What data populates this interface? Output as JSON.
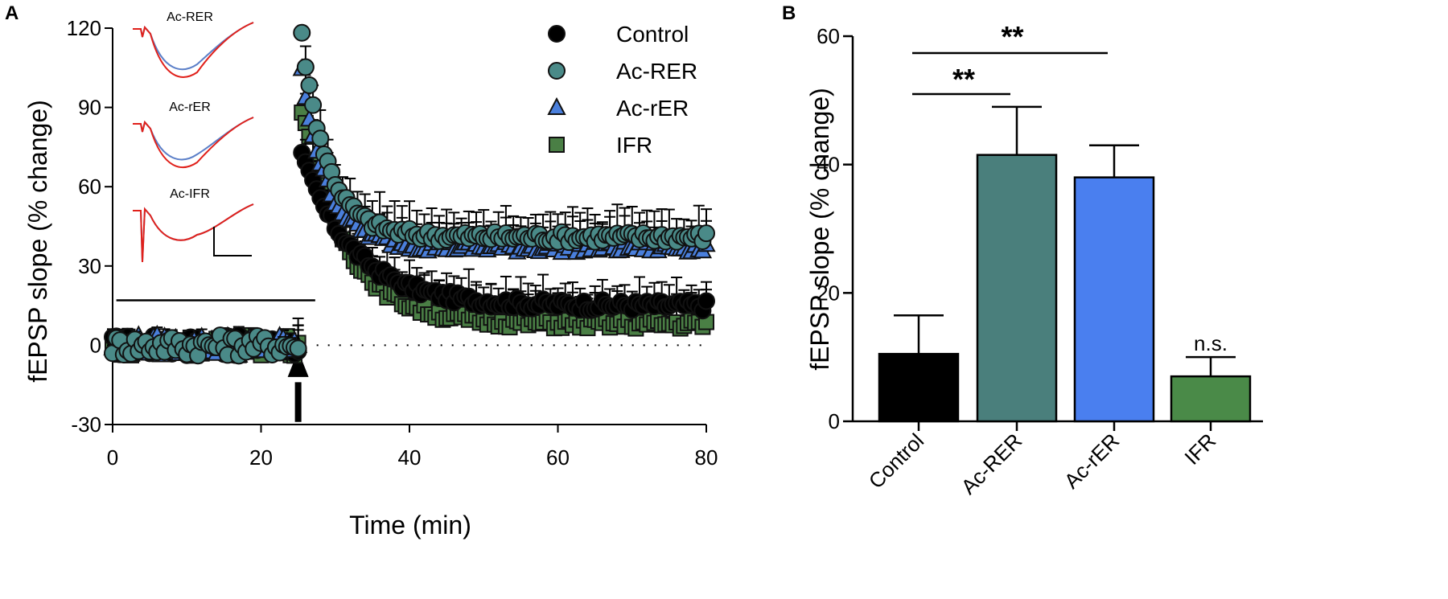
{
  "panels": {
    "a": "A",
    "b": "B"
  },
  "chart_data": [
    {
      "type": "scatter",
      "panel": "A",
      "xlabel": "Time (min)",
      "ylabel": "fEPSP slope (% change)",
      "xlim": [
        0,
        80
      ],
      "ylim": [
        -30,
        120
      ],
      "xticks": [
        0,
        20,
        40,
        60,
        80
      ],
      "yticks": [
        -30,
        0,
        30,
        60,
        90,
        120
      ],
      "baseline_bar_label": "",
      "stimulus_arrow_time": 25,
      "series": [
        {
          "name": "Control",
          "marker": "circle",
          "color": "#000000",
          "baseline": 0,
          "peak": 72,
          "plateau": 15,
          "tau": 7,
          "err": 8
        },
        {
          "name": "Ac-RER",
          "marker": "circle",
          "color": "#4a8a88",
          "baseline": 0,
          "peak": 117,
          "plateau": 41,
          "tau": 3.5,
          "err": 9
        },
        {
          "name": "Ac-rER",
          "marker": "triangle",
          "color": "#4a7fdc",
          "baseline": 0,
          "peak": 103,
          "plateau": 37,
          "tau": 3.5,
          "err": 8
        },
        {
          "name": "IFR",
          "marker": "square",
          "color": "#4a7f45",
          "baseline": 0,
          "peak": 90,
          "plateau": 8,
          "tau": 6,
          "err": 10
        }
      ],
      "insets": [
        {
          "label": "Ac-RER"
        },
        {
          "label": "Ac-rER"
        },
        {
          "label": "Ac-IFR"
        }
      ]
    },
    {
      "type": "bar",
      "panel": "B",
      "ylabel": "fEPSP slope (% change)",
      "ylim": [
        0,
        60
      ],
      "yticks": [
        0,
        20,
        40,
        60
      ],
      "categories": [
        "Control",
        "Ac-RER",
        "Ac-rER",
        "IFR"
      ],
      "values": [
        10.5,
        41.5,
        38,
        7
      ],
      "errors": [
        6,
        7.5,
        5,
        3
      ],
      "colors": [
        "#000000",
        "#4a7f7c",
        "#4a7fef",
        "#4a8a48"
      ],
      "annotations": [
        {
          "from": "Control",
          "to": "Ac-RER",
          "text": "**"
        },
        {
          "from": "Control",
          "to": "Ac-rER",
          "text": "**"
        },
        {
          "at": "IFR",
          "text": "n.s."
        }
      ]
    }
  ]
}
